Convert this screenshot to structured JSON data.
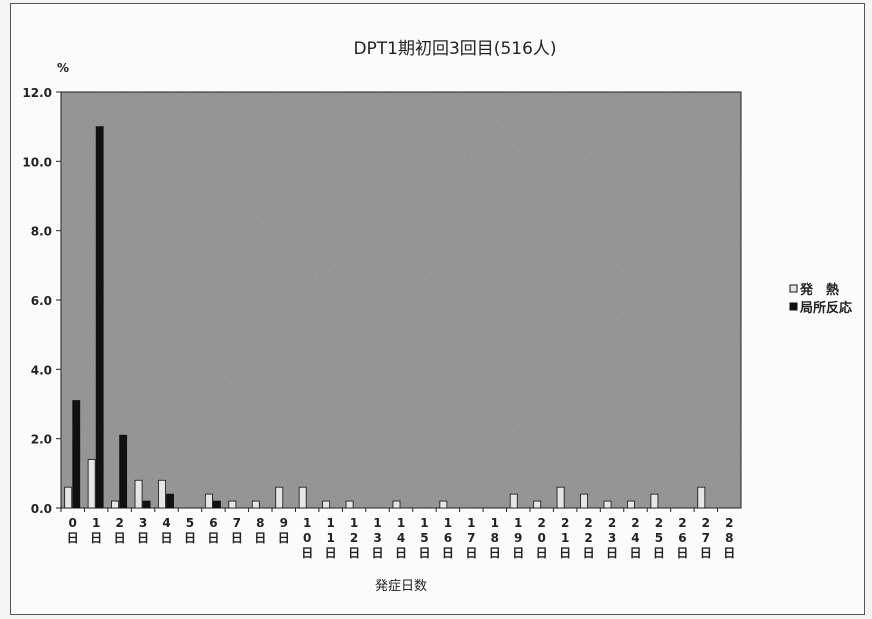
{
  "chart_data": {
    "type": "bar",
    "title": "DPT1期初回3回目(516人)",
    "ylabel": "%",
    "xlabel": "発症日数",
    "ylim": [
      0,
      12
    ],
    "yticks": [
      "0.0",
      "2.0",
      "4.0",
      "6.0",
      "8.0",
      "10.0",
      "12.0"
    ],
    "grid": false,
    "legend_position": "right",
    "categories": [
      [
        "0",
        "日"
      ],
      [
        "1",
        "日"
      ],
      [
        "2",
        "日"
      ],
      [
        "3",
        "日"
      ],
      [
        "4",
        "日"
      ],
      [
        "5",
        "日"
      ],
      [
        "6",
        "日"
      ],
      [
        "7",
        "日"
      ],
      [
        "8",
        "日"
      ],
      [
        "9",
        "日"
      ],
      [
        "1",
        "0",
        "日"
      ],
      [
        "1",
        "1",
        "日"
      ],
      [
        "1",
        "2",
        "日"
      ],
      [
        "1",
        "3",
        "日"
      ],
      [
        "1",
        "4",
        "日"
      ],
      [
        "1",
        "5",
        "日"
      ],
      [
        "1",
        "6",
        "日"
      ],
      [
        "1",
        "7",
        "日"
      ],
      [
        "1",
        "8",
        "日"
      ],
      [
        "1",
        "9",
        "日"
      ],
      [
        "2",
        "0",
        "日"
      ],
      [
        "2",
        "1",
        "日"
      ],
      [
        "2",
        "2",
        "日"
      ],
      [
        "2",
        "3",
        "日"
      ],
      [
        "2",
        "4",
        "日"
      ],
      [
        "2",
        "5",
        "日"
      ],
      [
        "2",
        "6",
        "日"
      ],
      [
        "2",
        "7",
        "日"
      ],
      [
        "2",
        "8",
        "日"
      ]
    ],
    "series": [
      {
        "name": "発　熱",
        "color": "#e6e6e6",
        "values": [
          0.6,
          1.4,
          0.2,
          0.8,
          0.8,
          0,
          0.4,
          0.2,
          0.2,
          0.6,
          0.6,
          0.2,
          0.2,
          0,
          0.2,
          0,
          0.2,
          0,
          0,
          0.4,
          0.2,
          0.6,
          0.4,
          0.2,
          0.2,
          0.4,
          0,
          0.6,
          0
        ]
      },
      {
        "name": "局所反応",
        "color": "#111111",
        "values": [
          3.1,
          11.0,
          2.1,
          0.2,
          0.4,
          0,
          0.2,
          0,
          0,
          0,
          0,
          0,
          0,
          0,
          0,
          0,
          0,
          0,
          0,
          0,
          0,
          0,
          0,
          0,
          0,
          0,
          0,
          0,
          0
        ]
      }
    ],
    "colors": {
      "plot_background": "#8e8e8e",
      "frame": "#555555"
    }
  }
}
